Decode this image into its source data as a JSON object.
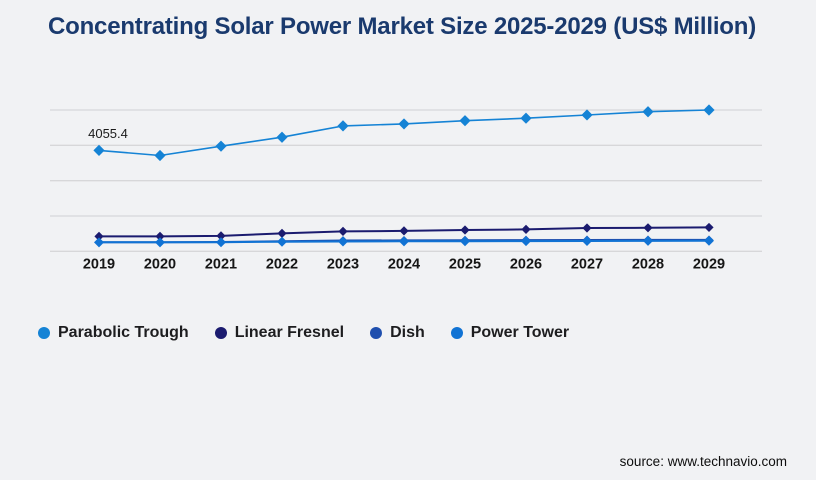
{
  "title": "Concentrating Solar Power Market Size 2025-2029 (US$ Million)",
  "source": "source: www.technavio.com",
  "colors": {
    "background": "#f1f2f4",
    "title_text": "#1a3a6e",
    "gridline": "#d7d7d9",
    "axis_label_text": "#161616",
    "legend_text": "#1d1d1f",
    "source_text": "#0d0d0d"
  },
  "chart_data": {
    "type": "line",
    "title": "Concentrating Solar Power Market Size 2025-2029 (US$ Million)",
    "xlabel": "",
    "ylabel": "",
    "x": [
      2019,
      2020,
      2021,
      2022,
      2023,
      2024,
      2025,
      2026,
      2027,
      2028,
      2029
    ],
    "ylim": [
      0,
      6200
    ],
    "grid": true,
    "legend_position": "bottom-left",
    "series": [
      {
        "name": "Parabolic Trough",
        "color": "#1583d5",
        "marker": "diamond",
        "values": [
          4055.4,
          3850,
          4225,
          4585,
          5040,
          5120,
          5250,
          5350,
          5480,
          5610,
          5680
        ]
      },
      {
        "name": "Linear Fresnel",
        "color": "#1b1b6f",
        "marker": "diamond",
        "values": [
          600,
          600,
          620,
          720,
          800,
          820,
          855,
          880,
          935,
          945,
          960
        ]
      },
      {
        "name": "Dish",
        "color": "#1f4fae",
        "marker": "diamond",
        "values": [
          362,
          362,
          372,
          400,
          435,
          440,
          448,
          452,
          456,
          458,
          460
        ]
      },
      {
        "name": "Power Tower",
        "color": "#1173d4",
        "marker": "diamond",
        "values": [
          360,
          360,
          365,
          385,
          395,
          400,
          405,
          410,
          415,
          418,
          422
        ]
      }
    ],
    "data_label": {
      "series": "Parabolic Trough",
      "x": 2019,
      "text": "4055.4"
    }
  }
}
